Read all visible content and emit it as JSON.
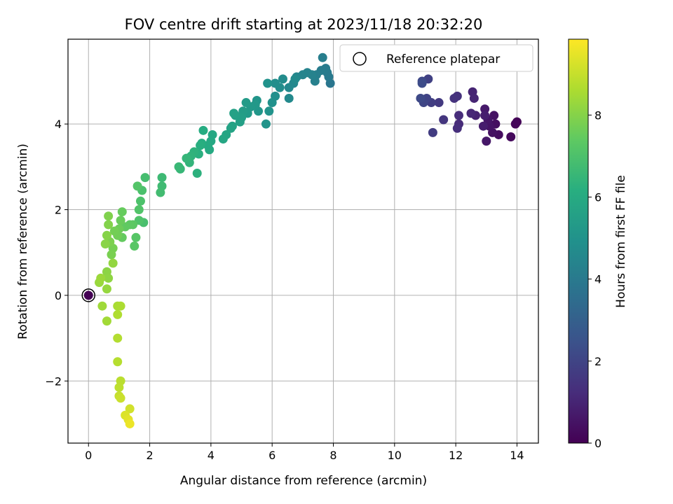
{
  "chart_data": {
    "type": "scatter",
    "title": "FOV centre drift starting at 2023/11/18 20:32:20",
    "xlabel": "Angular distance from reference (arcmin)",
    "ylabel": "Rotation from reference (arcmin)",
    "xlim": [
      -0.67,
      14.7
    ],
    "ylim": [
      -3.45,
      5.98
    ],
    "xticks": [
      0,
      2,
      4,
      6,
      8,
      10,
      12,
      14
    ],
    "yticks": [
      -2,
      0,
      2,
      4
    ],
    "grid": true,
    "colormap": "viridis",
    "colorbar": {
      "label": "Hours from first FF file",
      "range": [
        0,
        9.85
      ],
      "ticks": [
        0,
        2,
        4,
        6,
        8
      ]
    },
    "legend": {
      "placement": "top-right",
      "entries": [
        "Reference platepar"
      ]
    },
    "reference_point": {
      "x": 0,
      "y": 0
    },
    "points": [
      [
        14.0,
        4.05,
        0.1
      ],
      [
        13.95,
        4.0,
        0.15
      ],
      [
        13.8,
        3.7,
        0.25
      ],
      [
        13.4,
        3.75,
        0.35
      ],
      [
        13.3,
        4.0,
        0.4
      ],
      [
        13.2,
        3.8,
        0.45
      ],
      [
        13.25,
        4.2,
        0.5
      ],
      [
        13.1,
        3.95,
        0.55
      ],
      [
        13.05,
        4.1,
        0.6
      ],
      [
        13.0,
        3.6,
        0.65
      ],
      [
        12.95,
        4.35,
        0.7
      ],
      [
        12.9,
        3.95,
        0.8
      ],
      [
        12.95,
        4.2,
        0.85
      ],
      [
        12.65,
        4.2,
        0.95
      ],
      [
        12.55,
        4.75,
        1.0
      ],
      [
        12.6,
        4.6,
        1.05
      ],
      [
        12.5,
        4.25,
        1.1
      ],
      [
        12.1,
        4.0,
        1.2
      ],
      [
        12.1,
        4.2,
        1.25
      ],
      [
        12.05,
        3.9,
        1.3
      ],
      [
        12.05,
        4.65,
        1.4
      ],
      [
        11.95,
        4.6,
        1.45
      ],
      [
        11.6,
        4.1,
        1.55
      ],
      [
        11.45,
        4.5,
        1.65
      ],
      [
        11.25,
        3.8,
        1.75
      ],
      [
        11.2,
        4.5,
        1.8
      ],
      [
        11.1,
        5.05,
        1.9
      ],
      [
        11.05,
        4.6,
        2.0
      ],
      [
        10.95,
        4.5,
        2.05
      ],
      [
        10.9,
        5.0,
        2.15
      ],
      [
        10.85,
        4.6,
        2.2
      ],
      [
        10.9,
        4.95,
        2.3
      ],
      [
        7.9,
        4.95,
        3.9
      ],
      [
        7.85,
        5.1,
        4.0
      ],
      [
        7.8,
        5.2,
        4.05
      ],
      [
        7.75,
        5.3,
        4.1
      ],
      [
        7.6,
        5.25,
        4.15
      ],
      [
        7.65,
        5.55,
        4.2
      ],
      [
        7.45,
        5.15,
        4.25
      ],
      [
        7.4,
        5.0,
        4.3
      ],
      [
        7.3,
        5.15,
        4.35
      ],
      [
        7.15,
        5.2,
        4.4
      ],
      [
        7.0,
        5.15,
        4.45
      ],
      [
        6.8,
        5.1,
        4.5
      ],
      [
        6.7,
        4.95,
        4.55
      ],
      [
        6.55,
        4.85,
        4.6
      ],
      [
        6.55,
        4.6,
        4.65
      ],
      [
        6.75,
        5.05,
        4.7
      ],
      [
        6.35,
        5.05,
        4.75
      ],
      [
        6.25,
        4.85,
        4.8
      ],
      [
        6.1,
        4.95,
        4.85
      ],
      [
        6.1,
        4.65,
        4.9
      ],
      [
        6.0,
        4.5,
        4.95
      ],
      [
        5.85,
        4.95,
        5.0
      ],
      [
        5.9,
        4.3,
        5.05
      ],
      [
        5.8,
        4.0,
        5.1
      ],
      [
        5.5,
        4.55,
        5.15
      ],
      [
        5.55,
        4.3,
        5.2
      ],
      [
        5.45,
        4.45,
        5.25
      ],
      [
        5.3,
        4.4,
        5.3
      ],
      [
        5.2,
        4.25,
        5.35
      ],
      [
        5.15,
        4.5,
        5.4
      ],
      [
        5.05,
        4.3,
        5.45
      ],
      [
        5.0,
        4.15,
        5.5
      ],
      [
        4.95,
        4.05,
        5.55
      ],
      [
        4.8,
        4.2,
        5.6
      ],
      [
        4.75,
        4.25,
        5.65
      ],
      [
        4.7,
        3.95,
        5.7
      ],
      [
        4.65,
        3.9,
        5.75
      ],
      [
        4.5,
        3.75,
        5.8
      ],
      [
        4.4,
        3.65,
        5.85
      ],
      [
        4.05,
        3.75,
        5.9
      ],
      [
        4.0,
        3.6,
        5.95
      ],
      [
        3.95,
        3.4,
        6.0
      ],
      [
        3.9,
        3.5,
        6.05
      ],
      [
        3.75,
        3.85,
        6.1
      ],
      [
        3.7,
        3.55,
        6.15
      ],
      [
        3.65,
        3.5,
        6.2
      ],
      [
        3.6,
        3.3,
        6.25
      ],
      [
        3.55,
        2.85,
        6.3
      ],
      [
        3.45,
        3.35,
        6.35
      ],
      [
        3.35,
        3.25,
        6.4
      ],
      [
        3.3,
        3.1,
        6.45
      ],
      [
        3.2,
        3.2,
        6.5
      ],
      [
        3.0,
        2.95,
        6.55
      ],
      [
        2.95,
        3.0,
        6.6
      ],
      [
        2.4,
        2.75,
        6.7
      ],
      [
        2.4,
        2.55,
        6.75
      ],
      [
        2.35,
        2.4,
        6.8
      ],
      [
        1.85,
        2.75,
        6.9
      ],
      [
        1.8,
        1.7,
        6.95
      ],
      [
        1.75,
        2.45,
        7.0
      ],
      [
        1.7,
        2.2,
        7.05
      ],
      [
        1.65,
        1.75,
        7.1
      ],
      [
        1.65,
        2.0,
        7.15
      ],
      [
        1.6,
        2.55,
        7.2
      ],
      [
        1.55,
        1.35,
        7.25
      ],
      [
        1.5,
        1.15,
        7.3
      ],
      [
        1.45,
        1.65,
        7.35
      ],
      [
        1.35,
        1.65,
        7.4
      ],
      [
        1.2,
        1.6,
        7.45
      ],
      [
        1.1,
        1.35,
        7.5
      ],
      [
        1.1,
        1.95,
        7.55
      ],
      [
        1.05,
        1.75,
        7.6
      ],
      [
        1.0,
        1.55,
        7.65
      ],
      [
        0.95,
        1.4,
        7.7
      ],
      [
        0.85,
        1.5,
        7.75
      ],
      [
        0.8,
        1.1,
        7.8
      ],
      [
        0.75,
        0.95,
        7.85
      ],
      [
        0.7,
        1.25,
        7.9
      ],
      [
        0.65,
        1.85,
        7.95
      ],
      [
        0.65,
        1.65,
        8.0
      ],
      [
        0.6,
        1.4,
        8.05
      ],
      [
        0.55,
        1.2,
        8.1
      ],
      [
        0.6,
        0.55,
        8.15
      ],
      [
        0.65,
        0.4,
        8.2
      ],
      [
        0.8,
        0.75,
        8.25
      ],
      [
        0.6,
        0.15,
        8.3
      ],
      [
        0.35,
        0.3,
        8.35
      ],
      [
        0.4,
        0.4,
        8.4
      ],
      [
        0.45,
        -0.25,
        8.45
      ],
      [
        0.6,
        -0.6,
        8.5
      ],
      [
        0.95,
        -0.25,
        8.6
      ],
      [
        1.05,
        -0.25,
        8.65
      ],
      [
        0.95,
        -0.45,
        8.7
      ],
      [
        0.95,
        -1.0,
        8.75
      ],
      [
        0.95,
        -1.55,
        8.8
      ],
      [
        1.05,
        -2.0,
        8.85
      ],
      [
        1.0,
        -2.15,
        8.9
      ],
      [
        1.0,
        -2.35,
        9.0
      ],
      [
        1.05,
        -2.4,
        9.1
      ],
      [
        1.35,
        -2.65,
        9.2
      ],
      [
        1.2,
        -2.8,
        9.35
      ],
      [
        1.3,
        -2.9,
        9.45
      ],
      [
        1.35,
        -3.0,
        9.6
      ]
    ]
  }
}
